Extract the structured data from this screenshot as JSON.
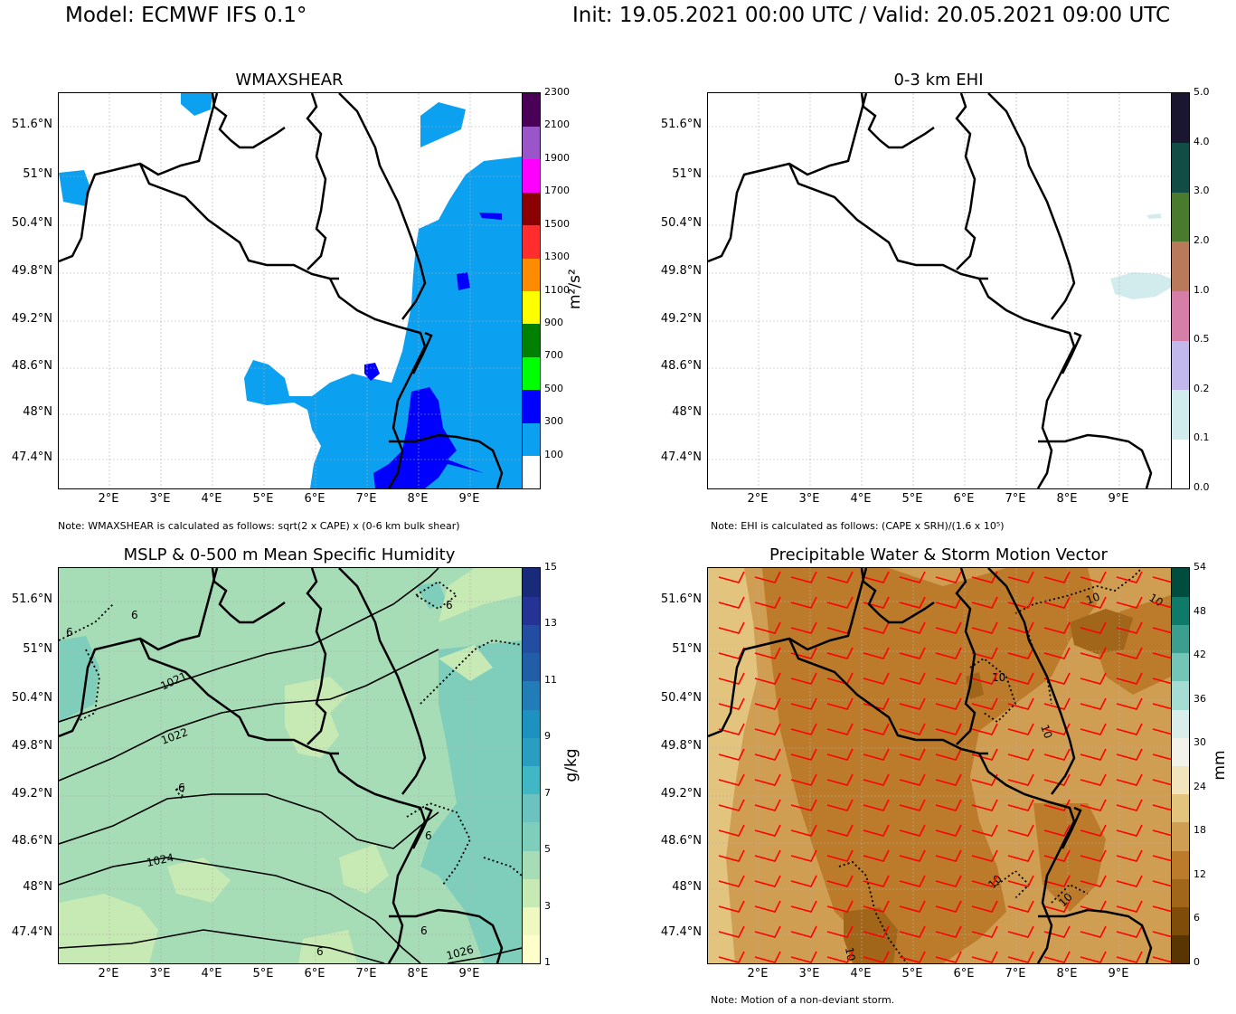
{
  "header": {
    "model": "Model: ECMWF IFS 0.1°",
    "init_valid": "Init: 19.05.2021 00:00 UTC / Valid: 20.05.2021 09:00 UTC"
  },
  "axes": {
    "lat_labels": [
      "51.6°N",
      "51°N",
      "50.4°N",
      "49.8°N",
      "49.2°N",
      "48.6°N",
      "48°N",
      "47.4°N"
    ],
    "lon_labels": [
      "2°E",
      "3°E",
      "4°E",
      "5°E",
      "6°E",
      "7°E",
      "8°E",
      "9°E"
    ]
  },
  "panels": [
    {
      "title": "WMAXSHEAR",
      "unit": "m²/s²",
      "ticks": [
        "100",
        "300",
        "500",
        "700",
        "900",
        "1100",
        "1300",
        "1500",
        "1700",
        "1900",
        "2100",
        "2300"
      ],
      "colors": [
        "#ffffff",
        "#0ba0f0",
        "#0000ff",
        "#00ff00",
        "#008000",
        "#ffff00",
        "#ff8c00",
        "#ff2d2d",
        "#8b0000",
        "#ff00ff",
        "#9a55c8",
        "#4a0057"
      ],
      "note": "Note: WMAXSHEAR is calculated as follows: sqrt(2 x CAPE) x (0-6 km bulk shear)"
    },
    {
      "title": "0-3 km EHI",
      "unit": "",
      "ticks": [
        "0.0",
        "0.1",
        "0.2",
        "0.5",
        "1.0",
        "2.0",
        "3.0",
        "4.0",
        "5.0"
      ],
      "colors": [
        "#ffffff",
        "#d2ecee",
        "#c3b8ec",
        "#d57fa8",
        "#b87a5a",
        "#4a7a2e",
        "#124d45",
        "#1a1630"
      ],
      "note": "Note: EHI is calculated as follows: (CAPE x SRH)/(1.6 x 10⁵)"
    },
    {
      "title": "MSLP & 0-500 m Mean Specific Humidity",
      "unit": "g/kg",
      "ticks": [
        "1",
        "3",
        "5",
        "7",
        "9",
        "11",
        "13",
        "15"
      ],
      "colors": [
        "#ffffcc",
        "#eef8c0",
        "#c7e9b4",
        "#a6dcb6",
        "#7fcdbb",
        "#6cc2bf",
        "#41b6c4",
        "#2a9ec1",
        "#1d91c0",
        "#227cb8",
        "#225ea8",
        "#234da0",
        "#253494",
        "#1a2a7a"
      ],
      "contour_labels": [
        "1021",
        "1022",
        "1024",
        "1026",
        "6",
        "6",
        "6",
        "6",
        "6",
        "6",
        "6"
      ],
      "note": ""
    },
    {
      "title": "Precipitable Water & Storm Motion Vector",
      "unit": "mm",
      "ticks": [
        "0",
        "6",
        "12",
        "18",
        "24",
        "30",
        "36",
        "42",
        "48",
        "54"
      ],
      "colors": [
        "#5a3504",
        "#7f4d09",
        "#a2661a",
        "#bb7b2b",
        "#d09e52",
        "#e2c47f",
        "#f2e5bd",
        "#f3f2ea",
        "#d9eeea",
        "#a5ddd4",
        "#73c5b7",
        "#3b9e8e",
        "#0f7a6a",
        "#004d40"
      ],
      "contour_labels": [
        "10",
        "10",
        "10",
        "10",
        "10",
        "10",
        "10"
      ],
      "note": "Note: Motion of a non-deviant storm."
    }
  ]
}
